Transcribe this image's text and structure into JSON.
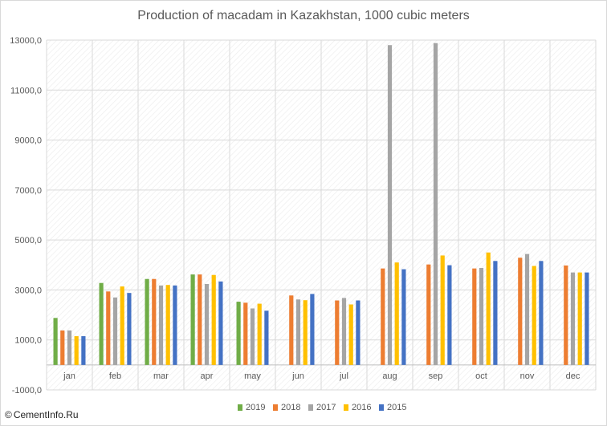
{
  "chart_data": {
    "type": "bar",
    "title": "Production of macadam in Kazakhstan, 1000 cubic meters",
    "xlabel": "",
    "ylabel": "",
    "ylim": [
      -1000,
      13000
    ],
    "y_ticks": [
      "-1000,0",
      "1000,0",
      "3000,0",
      "5000,0",
      "7000,0",
      "9000,0",
      "11000,0",
      "13000,0"
    ],
    "grid": true,
    "legend_position": "bottom",
    "categories": [
      "jan",
      "feb",
      "mar",
      "apr",
      "may",
      "jun",
      "jul",
      "aug",
      "sep",
      "oct",
      "nov",
      "dec"
    ],
    "series": [
      {
        "name": "2019",
        "color": "#70ad47",
        "values": [
          1880,
          3280,
          3440,
          3620,
          2530,
          null,
          null,
          null,
          null,
          null,
          null,
          null
        ]
      },
      {
        "name": "2018",
        "color": "#ed7d31",
        "values": [
          1380,
          2940,
          3440,
          3620,
          2490,
          2780,
          2580,
          3860,
          4020,
          3860,
          4290,
          3980
        ]
      },
      {
        "name": "2017",
        "color": "#a5a5a5",
        "values": [
          1380,
          2700,
          3180,
          3240,
          2260,
          2620,
          2680,
          12800,
          12880,
          3880,
          4440,
          3700
        ]
      },
      {
        "name": "2016",
        "color": "#ffc000",
        "values": [
          1150,
          3140,
          3200,
          3600,
          2450,
          2590,
          2420,
          4100,
          4380,
          4500,
          3960,
          3700
        ]
      },
      {
        "name": "2015",
        "color": "#4472c4",
        "values": [
          1150,
          2880,
          3180,
          3340,
          2170,
          2840,
          2580,
          3830,
          3990,
          4160,
          4160,
          3700
        ]
      }
    ]
  },
  "watermark": {
    "symbol": "©",
    "text": "CementInfo.Ru"
  }
}
